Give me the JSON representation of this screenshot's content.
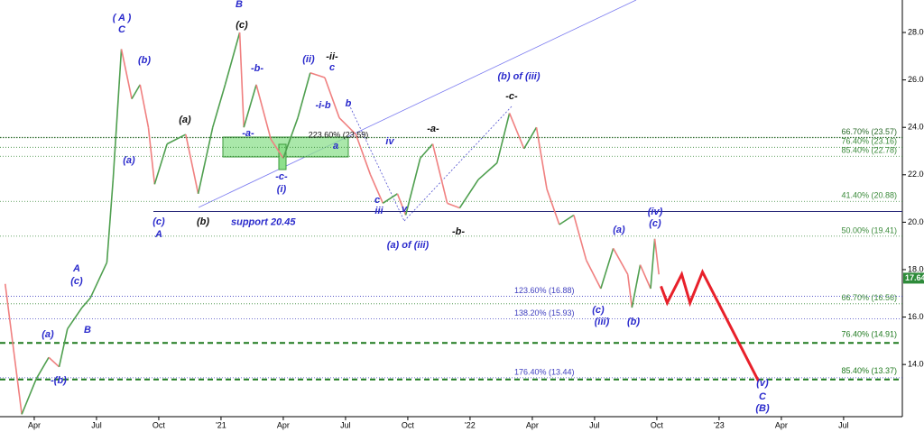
{
  "chart_data": {
    "type": "line",
    "xlim": [
      -1.65,
      41.83
    ],
    "ylim": [
      11.8,
      29.37
    ],
    "xticks": [
      {
        "value": 0,
        "label": "Apr"
      },
      {
        "value": 3,
        "label": "Jul"
      },
      {
        "value": 6,
        "label": "Oct"
      },
      {
        "value": 9,
        "label": "'21"
      },
      {
        "value": 12,
        "label": "Apr"
      },
      {
        "value": 15,
        "label": "Jul"
      },
      {
        "value": 18,
        "label": "Oct"
      },
      {
        "value": 21,
        "label": "'22"
      },
      {
        "value": 24,
        "label": "Apr"
      },
      {
        "value": 27,
        "label": "Jul"
      },
      {
        "value": 30,
        "label": "Oct"
      },
      {
        "value": 33,
        "label": "'23"
      },
      {
        "value": 36,
        "label": "Apr"
      },
      {
        "value": 39,
        "label": "Jul"
      }
    ],
    "yticks": [
      {
        "value": 14,
        "label": "14.00"
      },
      {
        "value": 16,
        "label": "16.00"
      },
      {
        "value": 18,
        "label": "18.00"
      },
      {
        "value": 20,
        "label": "20.00"
      },
      {
        "value": 22,
        "label": "22.00"
      },
      {
        "value": 24,
        "label": "24.00"
      },
      {
        "value": 26,
        "label": "26.00"
      },
      {
        "value": 28,
        "label": "28.00"
      }
    ],
    "series": [
      {
        "color": "#4f9f4f",
        "x": [
          -1.4,
          -0.6,
          0.1,
          0.7,
          1.2,
          1.6,
          2.3,
          2.7,
          3.5,
          3.8,
          4.2,
          4.7,
          5.1,
          5.5,
          5.8,
          6.4,
          7.3,
          7.9,
          8.6,
          9.2,
          9.9,
          10.1,
          10.7,
          11.4,
          12.0,
          12.7,
          13.3,
          14.0,
          14.7,
          15.5,
          16.2,
          16.8,
          17.5,
          17.9,
          18.6,
          19.2,
          19.9,
          20.5,
          21.4,
          22.3,
          22.9,
          23.6,
          24.2,
          24.7,
          25.3,
          26.0,
          26.6,
          27.3,
          27.9,
          28.6,
          28.8,
          29.2,
          29.7,
          29.9,
          30.1
        ],
        "values": [
          17.4,
          11.9,
          13.4,
          14.3,
          13.9,
          15.5,
          16.4,
          16.8,
          18.3,
          21.8,
          27.3,
          25.2,
          25.8,
          24.0,
          21.6,
          23.3,
          23.7,
          21.2,
          24.0,
          25.8,
          28.0,
          24.0,
          25.8,
          23.5,
          22.7,
          24.4,
          26.3,
          26.1,
          24.4,
          23.7,
          22.0,
          20.8,
          21.2,
          20.3,
          22.7,
          23.3,
          20.8,
          20.6,
          21.8,
          22.5,
          24.6,
          23.1,
          24.0,
          21.4,
          19.9,
          20.3,
          18.4,
          17.2,
          18.9,
          17.8,
          16.4,
          18.2,
          17.2,
          19.3,
          17.8
        ]
      },
      {
        "color": "#e8202a",
        "x": [
          30.2,
          30.5,
          31.2,
          31.6,
          32.2,
          34.9
        ],
        "values": [
          17.3,
          16.6,
          17.8,
          16.6,
          17.9,
          13.3
        ]
      }
    ],
    "levels": [
      {
        "label": "66.70% (23.57)",
        "value": 23.57
      },
      {
        "label": "76.40% (23.16)",
        "value": 23.16
      },
      {
        "label": "85.40% (22.78)",
        "value": 22.78
      },
      {
        "label": "41.40% (20.88)",
        "value": 20.88
      },
      {
        "label": "50.00% (19.41)",
        "value": 19.41
      },
      {
        "label": "123.60% (16.88)",
        "value": 16.88
      },
      {
        "label": "66.70% (16.56)",
        "value": 16.56
      },
      {
        "label": "138.20% (15.93)",
        "value": 15.93
      },
      {
        "label": "176.40% (13.44)",
        "value": 13.44
      },
      {
        "label": "76.40% (14.91)",
        "value": 14.91
      },
      {
        "label": "85.40% (13.37)",
        "value": 13.37
      }
    ],
    "support": {
      "label": "support 20.45",
      "value": 20.45
    },
    "current_price": 17.64,
    "annotations": [
      "( A )",
      "C",
      "B",
      "(c)",
      "(b)",
      "(a)",
      "-a-",
      "-b-",
      "(ii)",
      "-ii-",
      "c",
      "-i-b",
      "b",
      "223.60% (23.59)",
      "a",
      "iv",
      "-c-",
      "(i)",
      "(a)",
      "(c)",
      "A",
      "(b)",
      "c",
      "iii",
      "v",
      "(a) of (iii)",
      "-a-",
      "-b-",
      "-c-",
      "(b) of (iii)",
      "(a)",
      "(iv)",
      "(c)",
      "(c)",
      "(iii)",
      "(b)",
      "(v)",
      "C",
      "(B)",
      "A",
      "(c)",
      "B",
      "(a)",
      "-(b)"
    ]
  }
}
